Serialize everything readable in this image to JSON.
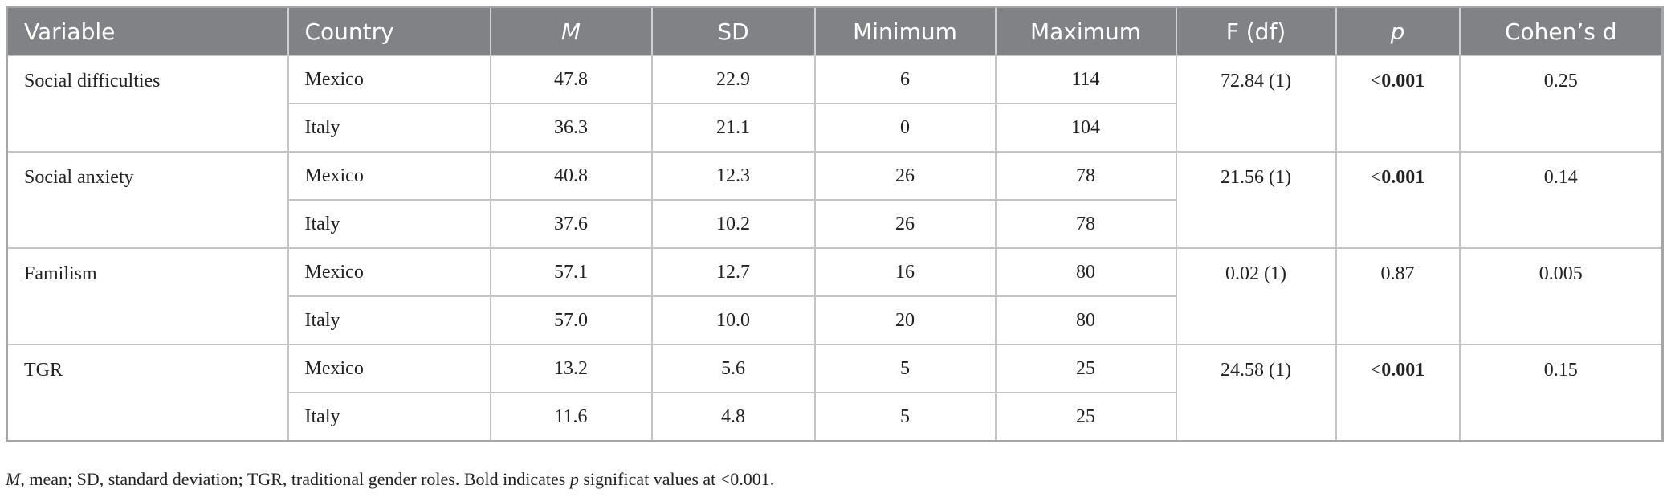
{
  "table": {
    "headers": [
      {
        "text": "Variable",
        "italic": false
      },
      {
        "text": "Country",
        "italic": false
      },
      {
        "text": "M",
        "italic": true
      },
      {
        "text": "SD",
        "italic": false
      },
      {
        "text": "Minimum",
        "italic": false
      },
      {
        "text": "Maximum",
        "italic": false
      },
      {
        "text": "F (df)",
        "italic": false
      },
      {
        "text": "p",
        "italic": true
      },
      {
        "text": "Cohen’s d",
        "italic": false
      }
    ],
    "groups": [
      {
        "variable": "Social difficulties",
        "f_df": "72.84 (1)",
        "p_sign": "<",
        "p": "0.001",
        "p_bold": true,
        "cohens_d": "0.25",
        "rows": [
          [
            "Mexico",
            "47.8",
            "22.9",
            "6",
            "114"
          ],
          [
            "Italy",
            "36.3",
            "21.1",
            "0",
            "104"
          ]
        ]
      },
      {
        "variable": "Social anxiety",
        "f_df": "21.56 (1)",
        "p_sign": "<",
        "p": "0.001",
        "p_bold": true,
        "cohens_d": "0.14",
        "rows": [
          [
            "Mexico",
            "40.8",
            "12.3",
            "26",
            "78"
          ],
          [
            "Italy",
            "37.6",
            "10.2",
            "26",
            "78"
          ]
        ]
      },
      {
        "variable": "Familism",
        "f_df": "0.02 (1)",
        "p": "0.87",
        "p_bold": false,
        "cohens_d": "0.005",
        "rows": [
          [
            "Mexico",
            "57.1",
            "12.7",
            "16",
            "80"
          ],
          [
            "Italy",
            "57.0",
            "10.0",
            "20",
            "80"
          ]
        ]
      },
      {
        "variable": "TGR",
        "f_df": "24.58 (1)",
        "p_sign": "<",
        "p": "0.001",
        "p_bold": true,
        "cohens_d": "0.15",
        "rows": [
          [
            "Mexico",
            "13.2",
            "5.6",
            "5",
            "25"
          ],
          [
            "Italy",
            "11.6",
            "4.8",
            "5",
            "25"
          ]
        ]
      }
    ]
  },
  "footnote": [
    {
      "text": "M",
      "italic": true
    },
    {
      "text": ", mean; SD, standard deviation; TGR, traditional gender roles. Bold indicates ",
      "italic": false
    },
    {
      "text": "p",
      "italic": true
    },
    {
      "text": " significat values at <0.001.",
      "italic": false
    }
  ]
}
